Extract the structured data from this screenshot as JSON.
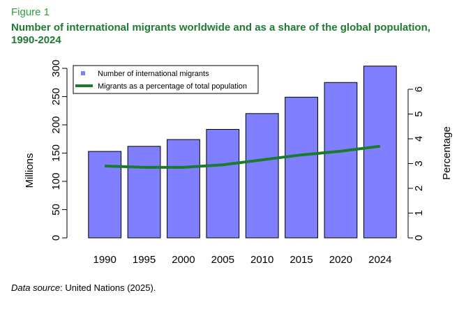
{
  "figure": {
    "label": "Figure 1",
    "title": "Number of international migrants worldwide and as a share of the global population, 1990-2024",
    "source_prefix": "Data source",
    "source_text": ": United Nations (2025)."
  },
  "chart_data": {
    "type": "bar",
    "categories": [
      "1990",
      "1995",
      "2000",
      "2005",
      "2010",
      "2015",
      "2020",
      "2024"
    ],
    "series": [
      {
        "name": "Number of international migrants",
        "kind": "bar",
        "axis": "left",
        "color": "#7f7fff",
        "values": [
          153,
          162,
          174,
          192,
          220,
          249,
          275,
          304
        ]
      },
      {
        "name": "Migrants as a percentage of total population",
        "kind": "line",
        "axis": "right",
        "color": "#1a7a2e",
        "values": [
          2.9,
          2.85,
          2.85,
          2.95,
          3.15,
          3.35,
          3.5,
          3.7
        ]
      }
    ],
    "ylabel": "Millions",
    "y2label": "Percentage",
    "ylim": [
      0,
      300
    ],
    "y2lim": [
      0,
      7
    ],
    "yticks": [
      0,
      50,
      100,
      150,
      200,
      250,
      300
    ],
    "y2ticks": [
      0,
      1,
      2,
      3,
      4,
      5,
      6
    ],
    "grid": false,
    "legend": "top-left"
  }
}
